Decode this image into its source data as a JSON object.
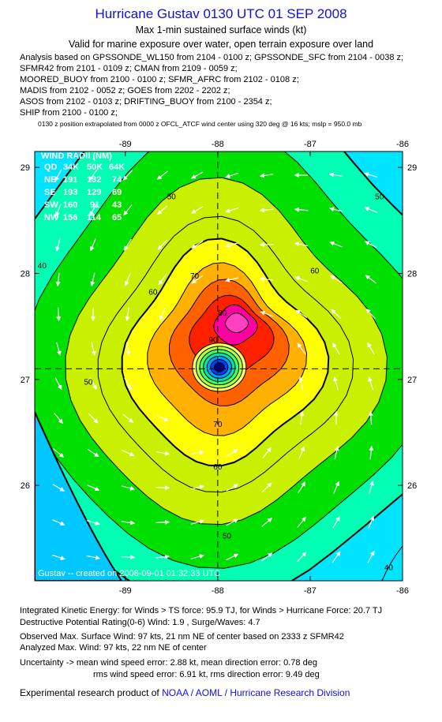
{
  "header": {
    "title": "Hurricane Gustav 0130 UTC 01 SEP 2008",
    "subtitle1": "Max 1-min sustained surface winds (kt)",
    "subtitle2": "Valid for marine exposure over water, open terrain exposure over land",
    "analysis_lines": [
      "Analysis based on  GPSSONDE_WL150 from 2104 - 0100 z;  GPSSONDE_SFC from 2104 - 0038 z;",
      "SFMR42 from 2101 - 0109 z;  CMAN from 2109 - 0059 z;",
      "MOORED_BUOY from 2100 - 0100 z;  SFMR_AFRC from 2102 - 0108 z;",
      "MADIS from 2102 - 0052 z;  GOES from 2202 - 2202 z;",
      "ASOS from 2102 - 0103 z;  DRIFTING_BUOY from 2100 - 2354 z;",
      "SHIP from 2100 - 0100 z;"
    ],
    "position_note": "0130 z position extrapolated from 0000 z OFCL_ATCF wind center using 320 deg @ 16 kts; mslp = 950.0 mb"
  },
  "wind_radii": {
    "title": "WIND RADII (NM)",
    "header": [
      "QD",
      "34K",
      "50K",
      "64K"
    ],
    "rows": [
      [
        "NE",
        "191",
        "132",
        "74"
      ],
      [
        "SE",
        "193",
        "129",
        "69"
      ],
      [
        "SW",
        "160",
        "91",
        "43"
      ],
      [
        "NW",
        "156",
        "114",
        "65"
      ]
    ]
  },
  "watermark": "Gustav  --  created on 2008-09-01  01:32:33 UTC",
  "chart_data": {
    "type": "heatmap",
    "x_ticks": [
      -89,
      -88,
      -87,
      -86
    ],
    "x_tick_labels": [
      "-89",
      "-88",
      "-87",
      "-86"
    ],
    "y_ticks": [
      26,
      27,
      28,
      29
    ],
    "y_tick_labels": [
      "26",
      "27",
      "28",
      "29"
    ],
    "xlim": [
      -89.98,
      -86.0
    ],
    "ylim": [
      25.1,
      29.15
    ],
    "center": {
      "lon": -88.0,
      "lat": 27.1
    },
    "contour_levels_kt": [
      40,
      50,
      60,
      70,
      80,
      90
    ],
    "contour_labels": [
      {
        "text": "50",
        "lon": -88.5,
        "lat": 28.7
      },
      {
        "text": "50",
        "lon": -86.25,
        "lat": 28.7
      },
      {
        "text": "40",
        "lon": -89.9,
        "lat": 28.05
      },
      {
        "text": "50",
        "lon": -89.4,
        "lat": 26.95
      },
      {
        "text": "60",
        "lon": -88.7,
        "lat": 27.8
      },
      {
        "text": "60",
        "lon": -86.95,
        "lat": 28.0
      },
      {
        "text": "70",
        "lon": -88.25,
        "lat": 27.95
      },
      {
        "text": "80",
        "lon": -87.95,
        "lat": 27.6
      },
      {
        "text": "90",
        "lon": -88.05,
        "lat": 27.35
      },
      {
        "text": "70",
        "lon": -88.0,
        "lat": 26.55
      },
      {
        "text": "60",
        "lon": -88.0,
        "lat": 26.15
      },
      {
        "text": "50",
        "lon": -87.9,
        "lat": 25.5
      },
      {
        "text": "40",
        "lon": -86.15,
        "lat": 25.2
      }
    ]
  },
  "colors": {
    "title": "#1010d8",
    "levels": [
      "#00e5ff",
      "#00ffb3",
      "#00e000",
      "#c8f000",
      "#ffff00",
      "#ffb000",
      "#ff6000",
      "#ff2000",
      "#ff00a0"
    ]
  },
  "footer": {
    "ike": "Integrated Kinetic Energy:  for Winds > TS force: 95.9 TJ,  for Winds > Hurricane Force: 20.7 TJ",
    "dpr": "Destructive Potential Rating(0-6)   Wind: 1.9 , Surge/Waves: 4.7",
    "observed": "Observed Max. Surface Wind: 97 kts, 21 nm NE of center based on 2333 z SFMR42",
    "analyzed": "Analyzed Max. Wind: 97 kts, 22 nm NE of center",
    "uncert1": "Uncertainty -> mean wind speed error: 2.88 kt,   mean direction error: 0.78 deg",
    "uncert2": "rms wind speed error: 6.91 kt,   rms direction error: 9.49 deg",
    "credit_prefix": "Experimental research product of ",
    "credit_link": "NOAA / AOML / Hurricane Research Division"
  }
}
